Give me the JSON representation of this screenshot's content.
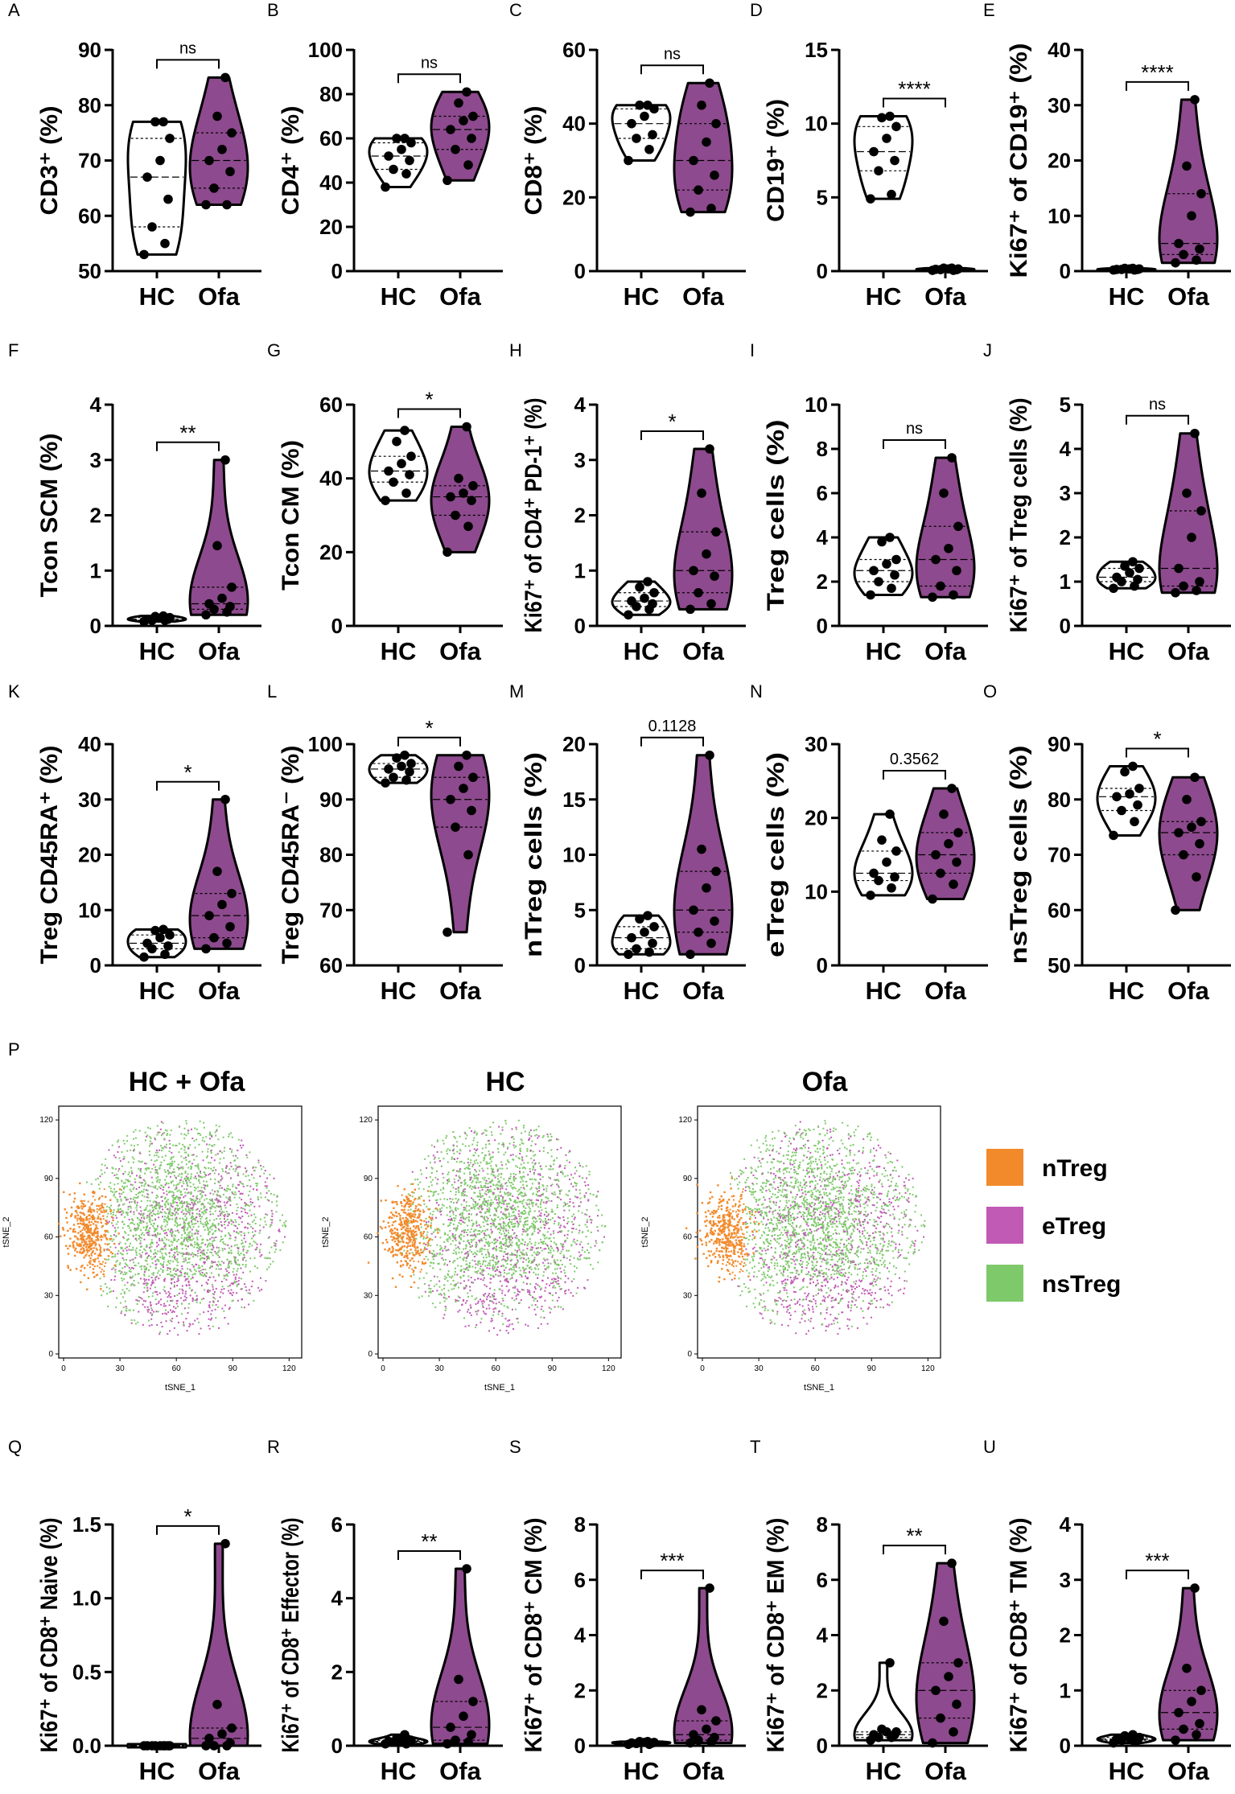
{
  "colors": {
    "hc_fill": "#ffffff",
    "ofa_fill": "#8e4a8e",
    "nTreg": "#f28a2c",
    "eTreg": "#c05ab4",
    "nsTreg": "#7ec96a"
  },
  "groups": [
    "HC",
    "Ofa"
  ],
  "chart_data": [
    {
      "type": "violin",
      "panel": "A",
      "ylabel": "CD3⁺ (%)",
      "ylim": [
        50,
        90
      ],
      "yticks": [
        50,
        60,
        70,
        80,
        90
      ],
      "sig": "ns",
      "hc": [
        53,
        55,
        58,
        63,
        67,
        70,
        74,
        77,
        77
      ],
      "ofa": [
        62,
        62,
        65,
        68,
        70,
        72,
        75,
        78,
        85
      ]
    },
    {
      "type": "violin",
      "panel": "B",
      "ylabel": "CD4⁺ (%)",
      "ylim": [
        0,
        100
      ],
      "yticks": [
        0,
        20,
        40,
        60,
        80,
        100
      ],
      "sig": "ns",
      "hc": [
        38,
        44,
        46,
        50,
        52,
        55,
        58,
        60,
        60
      ],
      "ofa": [
        41,
        48,
        55,
        60,
        64,
        68,
        70,
        76,
        81
      ]
    },
    {
      "type": "violin",
      "panel": "C",
      "ylabel": "CD8⁺ (%)",
      "ylim": [
        0,
        60
      ],
      "yticks": [
        0,
        20,
        40,
        60
      ],
      "sig": "ns",
      "hc": [
        30,
        33,
        36,
        37,
        40,
        42,
        44,
        45,
        45
      ],
      "ofa": [
        16,
        17,
        22,
        26,
        30,
        35,
        40,
        45,
        51
      ]
    },
    {
      "type": "violin",
      "panel": "D",
      "ylabel": "CD19⁺ (%)",
      "ylim": [
        0,
        15
      ],
      "yticks": [
        0,
        5,
        10,
        15
      ],
      "sig": "****",
      "hc": [
        4.9,
        5.2,
        6.8,
        7.5,
        8.1,
        9.0,
        9.8,
        10.4,
        10.5
      ],
      "ofa": [
        0.05,
        0.05,
        0.1,
        0.1,
        0.12,
        0.15,
        0.15,
        0.2,
        0.2
      ]
    },
    {
      "type": "violin",
      "panel": "E",
      "ylabel": "Ki67⁺ of CD19⁺ (%)",
      "ylim": [
        0,
        40
      ],
      "yticks": [
        0,
        10,
        20,
        30,
        40
      ],
      "sig": "****",
      "hc": [
        0.2,
        0.2,
        0.3,
        0.3,
        0.3,
        0.4,
        0.4,
        0.5,
        0.5
      ],
      "ofa": [
        1.5,
        2,
        3,
        4,
        5,
        10,
        14,
        19,
        31
      ]
    },
    {
      "type": "violin",
      "panel": "F",
      "ylabel": "Tcon SCM (%)",
      "ylim": [
        0,
        4
      ],
      "yticks": [
        0,
        1,
        2,
        3,
        4
      ],
      "sig": "**",
      "hc": [
        0.08,
        0.1,
        0.1,
        0.12,
        0.12,
        0.14,
        0.15,
        0.17,
        0.18
      ],
      "ofa": [
        0.2,
        0.25,
        0.3,
        0.35,
        0.4,
        0.5,
        0.7,
        1.45,
        3.0
      ]
    },
    {
      "type": "violin",
      "panel": "G",
      "ylabel": "Tcon CM (%)",
      "ylim": [
        0,
        60
      ],
      "yticks": [
        0,
        20,
        40,
        60
      ],
      "sig": "*",
      "hc": [
        34,
        36,
        39,
        41,
        42,
        44,
        46,
        50,
        53
      ],
      "ofa": [
        20,
        27,
        30,
        34,
        35,
        36,
        38,
        40,
        54
      ]
    },
    {
      "type": "violin",
      "panel": "H",
      "ylabel": "Ki67⁺ of CD4⁺ PD-1⁺ (%)",
      "ylim": [
        0,
        4
      ],
      "yticks": [
        0,
        1,
        2,
        3,
        4
      ],
      "sig": "*",
      "hc": [
        0.2,
        0.3,
        0.35,
        0.4,
        0.45,
        0.5,
        0.6,
        0.7,
        0.8
      ],
      "ofa": [
        0.3,
        0.4,
        0.6,
        0.9,
        1.0,
        1.3,
        1.7,
        2.4,
        3.2
      ]
    },
    {
      "type": "violin",
      "panel": "I",
      "ylabel": "Treg cells (%)",
      "ylim": [
        0,
        10
      ],
      "yticks": [
        0,
        2,
        4,
        6,
        8,
        10
      ],
      "sig": "ns",
      "hc": [
        1.4,
        1.7,
        2.0,
        2.3,
        2.5,
        2.8,
        3.0,
        3.8,
        4.0
      ],
      "ofa": [
        1.3,
        1.4,
        1.8,
        2.5,
        3.0,
        3.5,
        4.5,
        6.0,
        7.6
      ]
    },
    {
      "type": "violin",
      "panel": "J",
      "ylabel": "Ki67⁺ of Treg cells (%)",
      "ylim": [
        0,
        5
      ],
      "yticks": [
        0,
        1,
        2,
        3,
        4,
        5
      ],
      "sig": "ns",
      "hc": [
        0.85,
        0.9,
        1.0,
        1.05,
        1.1,
        1.2,
        1.3,
        1.35,
        1.45
      ],
      "ofa": [
        0.75,
        0.8,
        0.9,
        1.0,
        1.3,
        2.0,
        2.6,
        3.0,
        4.35
      ]
    },
    {
      "type": "violin",
      "panel": "K",
      "ylabel": "Treg CD45RA⁺ (%)",
      "ylim": [
        0,
        40
      ],
      "yticks": [
        0,
        10,
        20,
        30,
        40
      ],
      "sig": "*",
      "hc": [
        1.5,
        2.0,
        3.0,
        3.5,
        4.0,
        5.0,
        5.5,
        6.3,
        6.5
      ],
      "ofa": [
        3.0,
        4.0,
        5.0,
        7.0,
        9.0,
        11.0,
        13.0,
        17.0,
        30.0
      ]
    },
    {
      "type": "violin",
      "panel": "L",
      "ylabel": "Treg CD45RA⁻ (%)",
      "ylim": [
        60,
        100
      ],
      "yticks": [
        60,
        70,
        80,
        90,
        100
      ],
      "sig": "*",
      "hc": [
        93,
        93.5,
        94,
        95,
        95.5,
        96,
        96.5,
        97.5,
        98
      ],
      "ofa": [
        66,
        80,
        85,
        88,
        90,
        92,
        94,
        96,
        98
      ]
    },
    {
      "type": "violin",
      "panel": "M",
      "ylabel": "nTreg cells (%)",
      "ylim": [
        0,
        20
      ],
      "yticks": [
        0,
        5,
        10,
        15,
        20
      ],
      "sig": "0.1128",
      "hc": [
        1.0,
        1.2,
        1.5,
        2.0,
        2.5,
        3.0,
        3.5,
        4.2,
        4.5
      ],
      "ofa": [
        1.0,
        2.0,
        3.0,
        4.0,
        5.0,
        7.0,
        8.5,
        10.5,
        19.0
      ]
    },
    {
      "type": "violin",
      "panel": "N",
      "ylabel": "eTreg cells (%)",
      "ylim": [
        0,
        30
      ],
      "yticks": [
        0,
        10,
        20,
        30
      ],
      "sig": "0.3562",
      "hc": [
        9.5,
        10.5,
        11.5,
        12.0,
        12.5,
        14.0,
        15.5,
        17.0,
        20.5
      ],
      "ofa": [
        9.0,
        11.0,
        12.5,
        14.0,
        15.0,
        16.5,
        18.0,
        20.5,
        24.0
      ]
    },
    {
      "type": "violin",
      "panel": "O",
      "ylabel": "nsTreg cells (%)",
      "ylim": [
        50,
        90
      ],
      "yticks": [
        50,
        60,
        70,
        80,
        90
      ],
      "sig": "*",
      "hc": [
        73.5,
        76,
        78,
        79,
        80.5,
        81,
        82,
        85,
        86
      ],
      "ofa": [
        60,
        66,
        70,
        72,
        74,
        75,
        76,
        80,
        84
      ]
    },
    {
      "type": "violin",
      "panel": "Q",
      "ylabel": "Ki67⁺ of CD8⁺ Naive (%)",
      "ylim": [
        0,
        1.5
      ],
      "yticks": [
        0.0,
        0.5,
        1.0,
        1.5
      ],
      "tickfmt": 1,
      "sig": "*",
      "hc": [
        0,
        0,
        0,
        0,
        0,
        0,
        0,
        0,
        0
      ],
      "ofa": [
        0,
        0,
        0,
        0.02,
        0.05,
        0.08,
        0.12,
        0.28,
        1.37
      ]
    },
    {
      "type": "violin",
      "panel": "R",
      "ylabel": "Ki67⁺ of CD8⁺ Effector (%)",
      "ylim": [
        0,
        6
      ],
      "yticks": [
        0,
        2,
        4,
        6
      ],
      "sig": "**",
      "hc": [
        0.05,
        0.05,
        0.1,
        0.1,
        0.12,
        0.15,
        0.15,
        0.2,
        0.3
      ],
      "ofa": [
        0.05,
        0.1,
        0.15,
        0.3,
        0.5,
        0.8,
        1.2,
        1.8,
        4.8
      ]
    },
    {
      "type": "violin",
      "panel": "S",
      "ylabel": "Ki67⁺ of CD8⁺ CM (%)",
      "ylim": [
        0,
        8
      ],
      "yticks": [
        0,
        2,
        4,
        6,
        8
      ],
      "sig": "***",
      "hc": [
        0.05,
        0.05,
        0.08,
        0.1,
        0.1,
        0.12,
        0.12,
        0.15,
        0.15
      ],
      "ofa": [
        0.1,
        0.15,
        0.2,
        0.3,
        0.4,
        0.6,
        0.9,
        1.3,
        5.7
      ]
    },
    {
      "type": "violin",
      "panel": "T",
      "ylabel": "Ki67⁺ of CD8⁺ EM (%)",
      "ylim": [
        0,
        8
      ],
      "yticks": [
        0,
        2,
        4,
        6,
        8
      ],
      "sig": "**",
      "hc": [
        0.2,
        0.3,
        0.3,
        0.4,
        0.4,
        0.5,
        0.5,
        0.6,
        3.0
      ],
      "ofa": [
        0.1,
        0.5,
        1.0,
        1.5,
        2.0,
        2.5,
        3.0,
        4.5,
        6.6
      ]
    },
    {
      "type": "violin",
      "panel": "U",
      "ylabel": "Ki67⁺ of CD8⁺ TM (%)",
      "ylim": [
        0,
        4
      ],
      "yticks": [
        0,
        1,
        2,
        3,
        4
      ],
      "sig": "***",
      "hc": [
        0.05,
        0.08,
        0.1,
        0.1,
        0.12,
        0.14,
        0.15,
        0.18,
        0.2
      ],
      "ofa": [
        0.1,
        0.2,
        0.3,
        0.4,
        0.6,
        0.8,
        1.0,
        1.4,
        2.85
      ]
    },
    {
      "type": "scatter",
      "panel": "P",
      "subtype": "tSNE",
      "titles": [
        "HC + Ofa",
        "HC",
        "Ofa"
      ],
      "xlabel": "tSNE_1",
      "ylabel": "tSNE_2",
      "ticks": [
        0,
        30,
        60,
        90,
        120
      ],
      "xlim": [
        0,
        125
      ],
      "ylim": [
        0,
        125
      ],
      "legend": [
        "nTreg",
        "eTreg",
        "nsTreg"
      ]
    }
  ]
}
